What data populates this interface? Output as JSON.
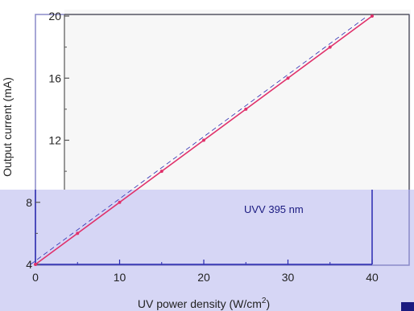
{
  "chart_data": {
    "type": "line",
    "title": "",
    "xlabel": "UV power density (W/cm",
    "xlabel_sup": "2",
    "xlabel_end": ")",
    "ylabel": "Output current (mA)",
    "xlim": [
      0,
      40
    ],
    "ylim": [
      4,
      20
    ],
    "x_ticks": [
      0,
      10,
      20,
      30,
      40
    ],
    "y_ticks": [
      4,
      8,
      12,
      16,
      20
    ],
    "annotation": "UVV 395 nm",
    "grid": false,
    "series": [
      {
        "name": "",
        "x": [
          0,
          5,
          10,
          15,
          20,
          25,
          30,
          35,
          40
        ],
        "y": [
          4,
          6,
          8,
          10,
          12,
          14,
          16,
          18,
          20
        ]
      }
    ],
    "colors": {
      "line": "#e0306a",
      "line_secondary": "#2a2ab0",
      "lower_panel": "#d6d6f5",
      "upper_panel": "#f7f7f7",
      "frame": "#8a8ac8"
    }
  }
}
